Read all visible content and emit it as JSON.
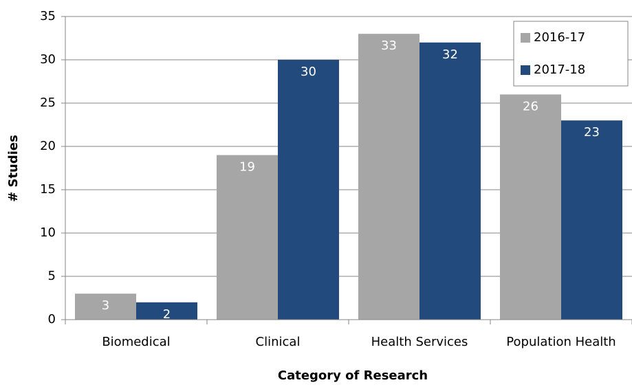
{
  "chart_data": {
    "type": "bar",
    "x_label": "Category of Research",
    "y_label": "# Studies",
    "categories": [
      "Biomedical",
      "Clinical",
      "Health Services",
      "Population Health"
    ],
    "series": [
      {
        "name": "2016-17",
        "color": "#a6a6a6",
        "values": [
          3,
          19,
          33,
          26
        ]
      },
      {
        "name": "2017-18",
        "color": "#234a7c",
        "values": [
          2,
          30,
          32,
          23
        ]
      }
    ],
    "ylim": [
      0,
      35
    ],
    "yticks": [
      0,
      5,
      10,
      15,
      20,
      25,
      30,
      35
    ],
    "grid": true,
    "legend": "top-right",
    "data_labels": true
  }
}
